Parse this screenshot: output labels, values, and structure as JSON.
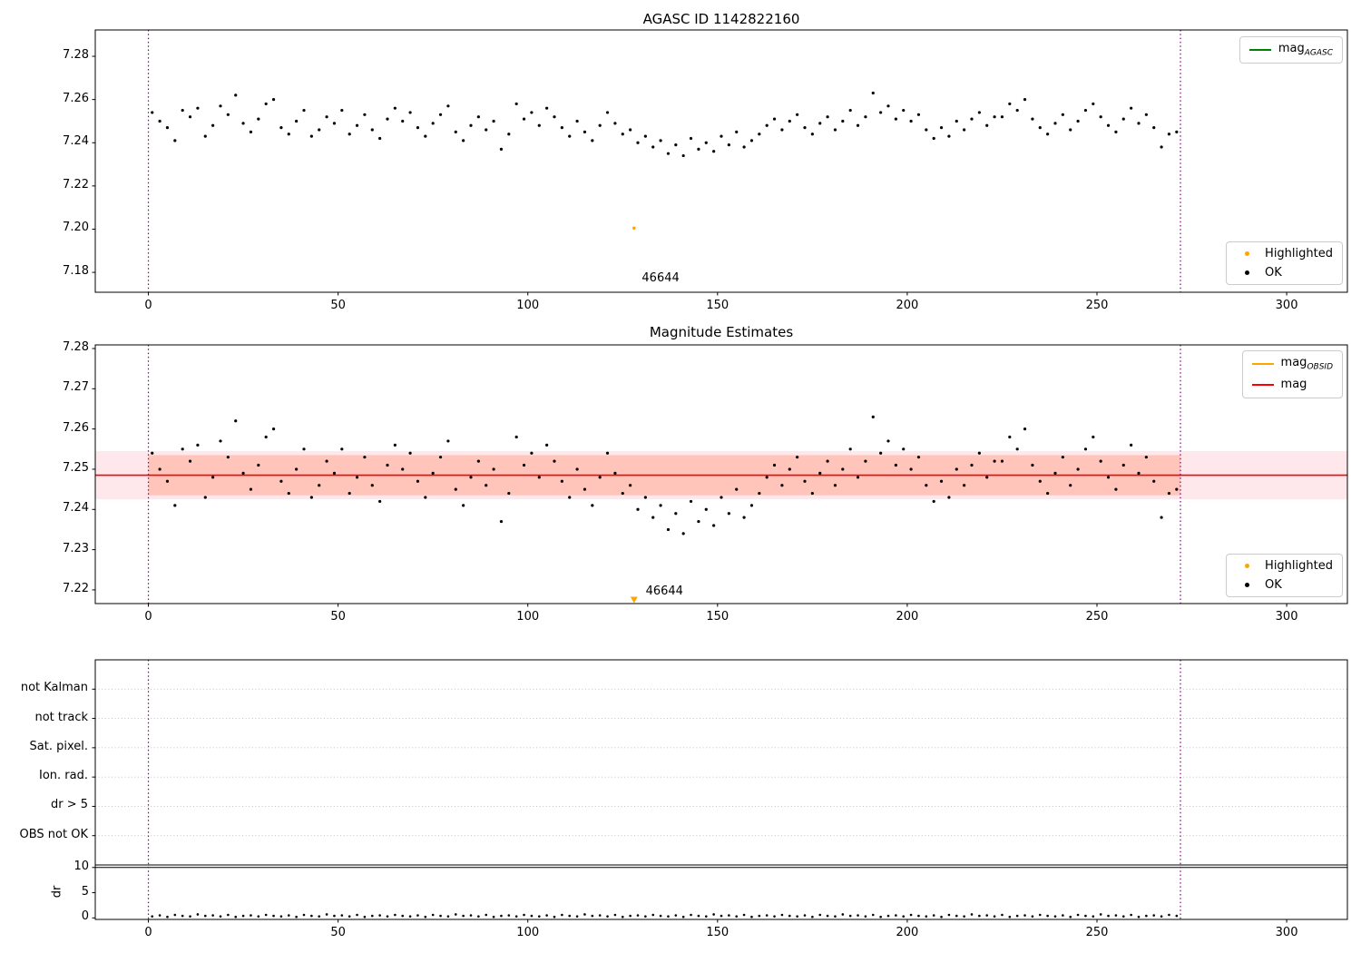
{
  "colors": {
    "ok": "#000000",
    "highlighted": "#ffa500",
    "vline": "#800080",
    "mag": "#ff0000",
    "agasc": "#008000",
    "obsid": "#ffa500"
  },
  "chart_data": {
    "type": "scatter",
    "x": [
      1,
      3,
      5,
      7,
      9,
      11,
      13,
      15,
      17,
      19,
      21,
      23,
      25,
      27,
      29,
      31,
      33,
      35,
      37,
      39,
      41,
      43,
      45,
      47,
      49,
      51,
      53,
      55,
      57,
      59,
      61,
      63,
      65,
      67,
      69,
      71,
      73,
      75,
      77,
      79,
      81,
      83,
      85,
      87,
      89,
      91,
      93,
      95,
      97,
      99,
      101,
      103,
      105,
      107,
      109,
      111,
      113,
      115,
      117,
      119,
      121,
      123,
      125,
      127,
      129,
      131,
      133,
      135,
      137,
      139,
      141,
      143,
      145,
      147,
      149,
      151,
      153,
      155,
      157,
      159,
      161,
      163,
      165,
      167,
      169,
      171,
      173,
      175,
      177,
      179,
      181,
      183,
      185,
      187,
      189,
      191,
      193,
      195,
      197,
      199,
      201,
      203,
      205,
      207,
      209,
      211,
      213,
      215,
      217,
      219,
      221,
      223,
      225,
      227,
      229,
      231,
      233,
      235,
      237,
      239,
      241,
      243,
      245,
      247,
      249,
      251,
      253,
      255,
      257,
      259,
      261,
      263,
      265,
      267,
      269,
      271
    ],
    "series": [
      {
        "name": "mag",
        "values": [
          7.254,
          7.25,
          7.247,
          7.241,
          7.255,
          7.252,
          7.256,
          7.243,
          7.248,
          7.257,
          7.253,
          7.262,
          7.249,
          7.245,
          7.251,
          7.258,
          7.26,
          7.247,
          7.244,
          7.25,
          7.255,
          7.243,
          7.246,
          7.252,
          7.249,
          7.255,
          7.244,
          7.248,
          7.253,
          7.246,
          7.242,
          7.251,
          7.256,
          7.25,
          7.254,
          7.247,
          7.243,
          7.249,
          7.253,
          7.257,
          7.245,
          7.241,
          7.248,
          7.252,
          7.246,
          7.25,
          7.237,
          7.244,
          7.258,
          7.251,
          7.254,
          7.248,
          7.256,
          7.252,
          7.247,
          7.243,
          7.25,
          7.245,
          7.241,
          7.248,
          7.254,
          7.249,
          7.244,
          7.246,
          7.24,
          7.243,
          7.238,
          7.241,
          7.235,
          7.239,
          7.234,
          7.242,
          7.237,
          7.24,
          7.236,
          7.243,
          7.239,
          7.245,
          7.238,
          7.241,
          7.244,
          7.248,
          7.251,
          7.246,
          7.25,
          7.253,
          7.247,
          7.244,
          7.249,
          7.252,
          7.246,
          7.25,
          7.255,
          7.248,
          7.252,
          7.263,
          7.254,
          7.257,
          7.251,
          7.255,
          7.25,
          7.253,
          7.246,
          7.242,
          7.247,
          7.243,
          7.25,
          7.246,
          7.251,
          7.254,
          7.248,
          7.252,
          7.252,
          7.258,
          7.255,
          7.26,
          7.251,
          7.247,
          7.244,
          7.249,
          7.253,
          7.246,
          7.25,
          7.255,
          7.258,
          7.252,
          7.248,
          7.245,
          7.251,
          7.256,
          7.249,
          7.253,
          7.247,
          7.238,
          7.244,
          7.245
        ]
      },
      {
        "name": "dr",
        "values": [
          0.3,
          0.5,
          0.2,
          0.6,
          0.4,
          0.3,
          0.7,
          0.4,
          0.5,
          0.3,
          0.6,
          0.2,
          0.4,
          0.5,
          0.3,
          0.6,
          0.4,
          0.3,
          0.5,
          0.2,
          0.6,
          0.4,
          0.3,
          0.7,
          0.4,
          0.5,
          0.3,
          0.6,
          0.2,
          0.4,
          0.5,
          0.3,
          0.6,
          0.4,
          0.3,
          0.5,
          0.2,
          0.6,
          0.4,
          0.3,
          0.7,
          0.4,
          0.5,
          0.3,
          0.6,
          0.2,
          0.4,
          0.5,
          0.3,
          0.6,
          0.4,
          0.3,
          0.5,
          0.2,
          0.6,
          0.4,
          0.3,
          0.7,
          0.4,
          0.5,
          0.3,
          0.6,
          0.2,
          0.4,
          0.5,
          0.3,
          0.6,
          0.4,
          0.3,
          0.5,
          0.2,
          0.6,
          0.4,
          0.3,
          0.7,
          0.4,
          0.5,
          0.3,
          0.6,
          0.2,
          0.4,
          0.5,
          0.3,
          0.6,
          0.4,
          0.3,
          0.5,
          0.2,
          0.6,
          0.4,
          0.3,
          0.7,
          0.4,
          0.5,
          0.3,
          0.6,
          0.2,
          0.4,
          0.5,
          0.3,
          0.6,
          0.4,
          0.3,
          0.5,
          0.2,
          0.6,
          0.4,
          0.3,
          0.7,
          0.4,
          0.5,
          0.3,
          0.6,
          0.2,
          0.4,
          0.5,
          0.3,
          0.6,
          0.4,
          0.3,
          0.5,
          0.2,
          0.6,
          0.4,
          0.3,
          0.7,
          0.4,
          0.5,
          0.3,
          0.6,
          0.2,
          0.4,
          0.5,
          0.3,
          0.6,
          0.4
        ]
      }
    ],
    "highlighted_point": {
      "x": 128,
      "mag": 7.2005,
      "obsid_label": "46644"
    },
    "panels": [
      {
        "title": "AGASC ID 1142822160",
        "xlim": [
          -14,
          316
        ],
        "ylim": [
          7.1708,
          7.2922
        ],
        "yticks": [
          7.18,
          7.2,
          7.22,
          7.24,
          7.26,
          7.28
        ],
        "ytick_labels": [
          "7.18",
          "7.20",
          "7.22",
          "7.24",
          "7.26",
          "7.28"
        ],
        "xticks": [
          0,
          50,
          100,
          150,
          200,
          250,
          300
        ],
        "vlines": [
          0,
          272
        ],
        "annotation": {
          "text": "46644",
          "x": 135,
          "y": 7.1775
        },
        "legend_top": [
          {
            "label": "mag",
            "subscript": "AGASC",
            "color": "#008000",
            "sample": "line"
          }
        ],
        "legend_bottom": [
          {
            "label": "Highlighted",
            "color": "#ffa500",
            "sample": "dot"
          },
          {
            "label": "OK",
            "color": "#000000",
            "sample": "dot"
          }
        ]
      },
      {
        "title": "Magnitude Estimates",
        "xlim": [
          -14,
          316
        ],
        "ylim": [
          7.2166,
          7.2809
        ],
        "yticks": [
          7.22,
          7.23,
          7.24,
          7.25,
          7.26,
          7.27,
          7.28
        ],
        "ytick_labels": [
          "7.22",
          "7.23",
          "7.24",
          "7.25",
          "7.26",
          "7.27",
          "7.28"
        ],
        "xticks": [
          0,
          50,
          100,
          150,
          200,
          250,
          300
        ],
        "vlines": [
          0,
          272
        ],
        "mag_mean": 7.2485,
        "mag_err_band": [
          7.2425,
          7.2545
        ],
        "band_color": "rgba(255,0,40,0.09)",
        "obsid_band": {
          "xspan": [
            0,
            272
          ],
          "yspan": [
            7.2435,
            7.2535
          ]
        },
        "obsid_band_color": "rgba(255,90,40,0.25)",
        "clipped_marker": {
          "x": 128,
          "y": 7.2175,
          "color": "#ffa500"
        },
        "annotation": {
          "text": "46644",
          "x": 136,
          "y": 7.2198
        },
        "legend_top": [
          {
            "label": "mag",
            "subscript": "OBSID",
            "color": "#ffa500",
            "sample": "line"
          },
          {
            "label": "mag",
            "subscript": "",
            "color": "#ff0000",
            "sample": "line"
          }
        ],
        "legend_bottom": [
          {
            "label": "Highlighted",
            "color": "#ffa500",
            "sample": "dot"
          },
          {
            "label": "OK",
            "color": "#000000",
            "sample": "dot"
          }
        ]
      },
      {
        "flag_categories": [
          "not Kalman",
          "not track",
          "Sat. pixel.",
          "Ion. rad.",
          "dr > 5",
          "OBS not OK"
        ],
        "dr": {
          "label": "dr",
          "ticks": [
            0,
            5,
            10
          ],
          "threshold": 10,
          "ylim": [
            -0.3,
            10.5
          ]
        },
        "xticks": [
          0,
          50,
          100,
          150,
          200,
          250,
          300
        ],
        "vlines": [
          0,
          272
        ]
      }
    ]
  }
}
